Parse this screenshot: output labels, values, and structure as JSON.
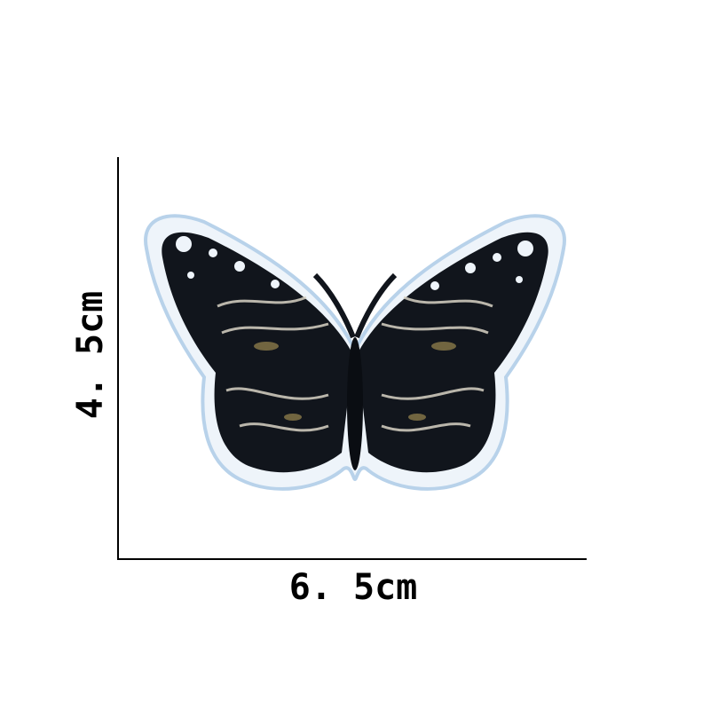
{
  "width_label": "6. 5cm",
  "height_label": "4. 5cm"
}
